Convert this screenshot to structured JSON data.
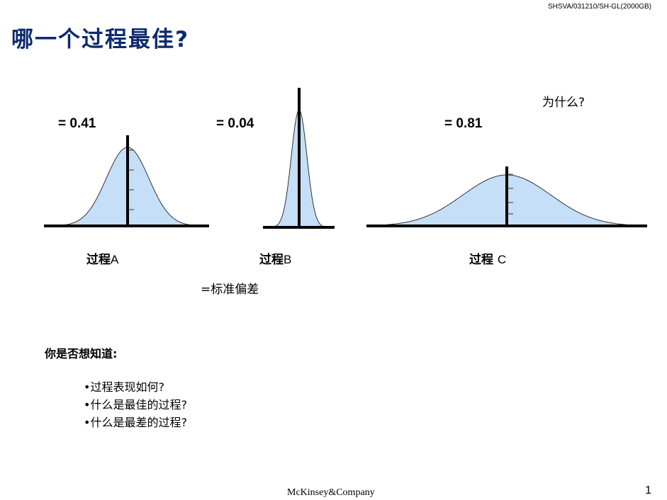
{
  "header": {
    "reference": "SHSVA/031210/SH-GL(2000GB)",
    "title": "哪一个过程最佳?"
  },
  "processes": [
    {
      "sigma_label": "= 0.41",
      "name_cn": "过程",
      "name_letter": "A"
    },
    {
      "sigma_label": "= 0.04",
      "name_cn": "过程",
      "name_letter": "B"
    },
    {
      "sigma_label": "= 0.81",
      "name_cn": "过程 ",
      "name_letter": "C"
    }
  ],
  "why": "为什么?",
  "legend": "=标准偏差",
  "questions": {
    "intro": "你是否想知道:",
    "items": [
      "•过程表现如何?",
      "•什么是最佳的过程?",
      "•什么是最差的过程?"
    ]
  },
  "footer": {
    "logo": "McKinsey&Company",
    "page": "1"
  },
  "colors": {
    "title": "#0d2a6e",
    "curve_fill": "#c6dff9"
  }
}
